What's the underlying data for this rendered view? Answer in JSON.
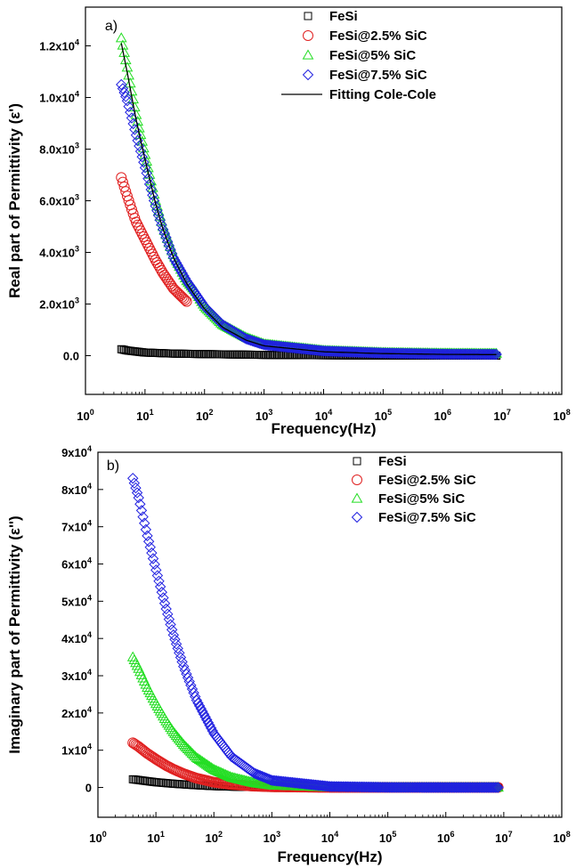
{
  "chart_data": [
    {
      "type": "scatter",
      "panel_label": "a)",
      "xlabel": "Frequency(Hz)",
      "ylabel": "Real part of Permittivity (ε')",
      "x_scale": "log",
      "xlim": [
        1,
        100000000
      ],
      "ylim": [
        -1500,
        13500
      ],
      "x_ticks": [
        {
          "value": 1,
          "base": "10",
          "exp": "0"
        },
        {
          "value": 10,
          "base": "10",
          "exp": "1"
        },
        {
          "value": 100,
          "base": "10",
          "exp": "2"
        },
        {
          "value": 1000,
          "base": "10",
          "exp": "3"
        },
        {
          "value": 10000,
          "base": "10",
          "exp": "4"
        },
        {
          "value": 100000,
          "base": "10",
          "exp": "5"
        },
        {
          "value": 1000000,
          "base": "10",
          "exp": "6"
        },
        {
          "value": 10000000,
          "base": "10",
          "exp": "7"
        },
        {
          "value": 100000000,
          "base": "10",
          "exp": "8"
        }
      ],
      "y_ticks": [
        {
          "value": 0,
          "mant": "0.0",
          "exp": ""
        },
        {
          "value": 2000,
          "mant": "2.0x10",
          "exp": "3"
        },
        {
          "value": 4000,
          "mant": "4.0x10",
          "exp": "3"
        },
        {
          "value": 6000,
          "mant": "6.0x10",
          "exp": "3"
        },
        {
          "value": 8000,
          "mant": "8.0x10",
          "exp": "3"
        },
        {
          "value": 10000,
          "mant": "1.0x10",
          "exp": "4"
        },
        {
          "value": 12000,
          "mant": "1.2x10",
          "exp": "4"
        }
      ],
      "legend_position": "top-right",
      "series": [
        {
          "name": "FeSi",
          "marker": "square",
          "color": "#000000",
          "x": [
            4,
            5,
            10,
            30,
            100,
            1000,
            10000,
            100000,
            1000000,
            8000000
          ],
          "y": [
            250,
            200,
            120,
            80,
            60,
            30,
            15,
            5,
            0,
            0
          ]
        },
        {
          "name": "FeSi@2.5% SiC",
          "marker": "circle",
          "color": "#e02020",
          "x": [
            4,
            5,
            7,
            10,
            15,
            20,
            30,
            50
          ],
          "y": [
            6900,
            6200,
            5200,
            4500,
            3700,
            3200,
            2600,
            2100
          ]
        },
        {
          "name": "FeSi@5% SiC",
          "marker": "triangle",
          "color": "#22dd22",
          "x": [
            4,
            5,
            7,
            10,
            15,
            20,
            30,
            50,
            70,
            100,
            200,
            500,
            1000,
            10000,
            100000,
            1000000,
            8000000
          ],
          "y": [
            12300,
            11200,
            9400,
            7800,
            6000,
            5000,
            3900,
            2900,
            2500,
            1900,
            1200,
            700,
            450,
            200,
            120,
            90,
            80
          ]
        },
        {
          "name": "FeSi@7.5% SiC",
          "marker": "diamond",
          "color": "#2020e0",
          "x": [
            4,
            5,
            7,
            10,
            15,
            20,
            30,
            50,
            100,
            200,
            500,
            1000,
            10000,
            100000,
            1000000,
            8000000
          ],
          "y": [
            10500,
            9900,
            8600,
            7300,
            5800,
            4900,
            3800,
            2900,
            1900,
            1200,
            650,
            420,
            180,
            100,
            60,
            50
          ]
        },
        {
          "name": "Fitting Cole-Cole",
          "marker": "line",
          "color": "#000000",
          "x": [
            4,
            5,
            7,
            10,
            15,
            20,
            30,
            50,
            100,
            200,
            500,
            1000,
            10000,
            100000,
            1000000,
            8000000
          ],
          "y": [
            12100,
            11000,
            9200,
            7600,
            5900,
            4900,
            3800,
            2800,
            1800,
            1100,
            600,
            380,
            150,
            80,
            50,
            40
          ]
        }
      ]
    },
    {
      "type": "scatter",
      "panel_label": "b)",
      "xlabel": "Frequency(Hz)",
      "ylabel": "Imaginary part of Permittivity (ε'')",
      "x_scale": "log",
      "xlim": [
        1,
        100000000
      ],
      "ylim": [
        -8000,
        90000
      ],
      "x_ticks": [
        {
          "value": 1,
          "base": "10",
          "exp": "0"
        },
        {
          "value": 10,
          "base": "10",
          "exp": "1"
        },
        {
          "value": 100,
          "base": "10",
          "exp": "2"
        },
        {
          "value": 1000,
          "base": "10",
          "exp": "3"
        },
        {
          "value": 10000,
          "base": "10",
          "exp": "4"
        },
        {
          "value": 100000,
          "base": "10",
          "exp": "5"
        },
        {
          "value": 1000000,
          "base": "10",
          "exp": "6"
        },
        {
          "value": 10000000,
          "base": "10",
          "exp": "7"
        },
        {
          "value": 100000000,
          "base": "10",
          "exp": "8"
        }
      ],
      "y_ticks": [
        {
          "value": 0,
          "mant": "0",
          "exp": ""
        },
        {
          "value": 10000,
          "mant": "1x10",
          "exp": "4"
        },
        {
          "value": 20000,
          "mant": "2x10",
          "exp": "4"
        },
        {
          "value": 30000,
          "mant": "3x10",
          "exp": "4"
        },
        {
          "value": 40000,
          "mant": "4x10",
          "exp": "4"
        },
        {
          "value": 50000,
          "mant": "5x10",
          "exp": "4"
        },
        {
          "value": 60000,
          "mant": "6x10",
          "exp": "4"
        },
        {
          "value": 70000,
          "mant": "7x10",
          "exp": "4"
        },
        {
          "value": 80000,
          "mant": "8x10",
          "exp": "4"
        },
        {
          "value": 90000,
          "mant": "9x10",
          "exp": "4"
        }
      ],
      "legend_position": "top-right",
      "series": [
        {
          "name": "FeSi",
          "marker": "square",
          "color": "#000000",
          "x": [
            4,
            5,
            7,
            10,
            20,
            50,
            100,
            300,
            1000,
            10000,
            100000,
            1000000,
            8000000
          ],
          "y": [
            2200,
            2000,
            1700,
            1400,
            1000,
            600,
            350,
            150,
            60,
            10,
            0,
            0,
            0
          ]
        },
        {
          "name": "FeSi@2.5% SiC",
          "marker": "circle",
          "color": "#e02020",
          "x": [
            4,
            5,
            7,
            10,
            15,
            20,
            30,
            50,
            100,
            200,
            500,
            1000,
            10000,
            100000,
            1000000,
            8000000
          ],
          "y": [
            12000,
            11000,
            9200,
            7600,
            5900,
            4900,
            3700,
            2500,
            1400,
            800,
            350,
            180,
            20,
            0,
            0,
            0
          ]
        },
        {
          "name": "FeSi@5% SiC",
          "marker": "triangle",
          "color": "#22dd22",
          "x": [
            4,
            5,
            7,
            10,
            15,
            20,
            30,
            50,
            100,
            200,
            500,
            1000,
            10000,
            100000,
            1000000,
            8000000
          ],
          "y": [
            35000,
            32000,
            27000,
            22500,
            17800,
            14900,
            11500,
            8000,
            4800,
            2700,
            1200,
            600,
            70,
            10,
            0,
            0
          ]
        },
        {
          "name": "FeSi@7.5% SiC",
          "marker": "diamond",
          "color": "#2020e0",
          "x": [
            4,
            5,
            7,
            10,
            15,
            20,
            30,
            50,
            100,
            200,
            500,
            1000,
            10000,
            100000,
            1000000,
            8000000
          ],
          "y": [
            83000,
            78000,
            68000,
            58500,
            48000,
            41000,
            32500,
            23500,
            14500,
            8300,
            3800,
            1900,
            250,
            30,
            0,
            0
          ]
        }
      ]
    }
  ]
}
